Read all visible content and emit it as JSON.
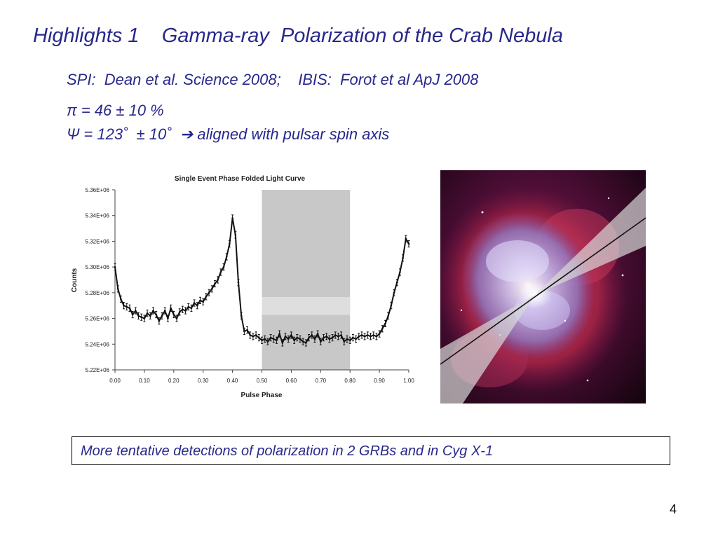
{
  "slide": {
    "title": "Highlights 1    Gamma-ray  Polarization of the Crab Nebula",
    "references": "SPI:  Dean et al. Science 2008;    IBIS:  Forot et al ApJ 2008",
    "pi_line": "π = 46 ± 10 %",
    "psi_line_prefix": "Ψ = 123˚  ± 10˚  ",
    "psi_arrow": "➔",
    "psi_line_suffix": " aligned with pulsar spin axis",
    "note": "More tentative detections of polarization in 2 GRBs and in Cyg X-1",
    "page_number": "4"
  },
  "chart_data": {
    "type": "line",
    "title": "Single Event Phase Folded Light Curve",
    "xlabel": "Pulse Phase",
    "ylabel": "Counts",
    "xlim": [
      0,
      1
    ],
    "ylim": [
      5220000,
      5360000
    ],
    "x_ticks": [
      "0.00",
      "0.10",
      "0.20",
      "0.30",
      "0.40",
      "0.50",
      "0.60",
      "0.70",
      "0.80",
      "0.90",
      "1.00"
    ],
    "y_ticks": [
      "5.22E+06",
      "5.24E+06",
      "5.26E+06",
      "5.28E+06",
      "5.30E+06",
      "5.32E+06",
      "5.34E+06",
      "5.36E+06"
    ],
    "shaded_region": [
      0.5,
      0.8
    ],
    "grid": false,
    "error_bars": true,
    "series": [
      {
        "x": [
          0.0,
          0.01,
          0.02,
          0.03,
          0.04,
          0.05,
          0.06,
          0.07,
          0.08,
          0.09,
          0.1,
          0.11,
          0.12,
          0.13,
          0.14,
          0.15,
          0.16,
          0.17,
          0.18,
          0.19,
          0.2,
          0.21,
          0.22,
          0.23,
          0.24,
          0.25,
          0.26,
          0.27,
          0.28,
          0.29,
          0.3,
          0.31,
          0.32,
          0.33,
          0.34,
          0.35,
          0.36,
          0.37,
          0.38,
          0.39,
          0.4,
          0.41,
          0.42,
          0.43,
          0.44,
          0.45,
          0.46,
          0.47,
          0.48,
          0.49,
          0.5,
          0.51,
          0.52,
          0.53,
          0.54,
          0.55,
          0.56,
          0.57,
          0.58,
          0.59,
          0.6,
          0.61,
          0.62,
          0.63,
          0.64,
          0.65,
          0.66,
          0.67,
          0.68,
          0.69,
          0.7,
          0.71,
          0.72,
          0.73,
          0.74,
          0.75,
          0.76,
          0.77,
          0.78,
          0.79,
          0.8,
          0.81,
          0.82,
          0.83,
          0.84,
          0.85,
          0.86,
          0.87,
          0.88,
          0.89,
          0.9,
          0.91,
          0.92,
          0.93,
          0.94,
          0.95,
          0.96,
          0.97,
          0.98,
          0.99,
          1.0
        ],
        "y": [
          5300000,
          5283000,
          5275000,
          5270000,
          5269000,
          5268000,
          5263000,
          5266000,
          5262000,
          5261000,
          5260000,
          5264000,
          5262000,
          5266000,
          5263000,
          5258000,
          5262000,
          5266000,
          5260000,
          5268000,
          5263000,
          5260000,
          5265000,
          5267000,
          5266000,
          5269000,
          5268000,
          5272000,
          5270000,
          5274000,
          5273000,
          5277000,
          5280000,
          5283000,
          5287000,
          5290000,
          5296000,
          5300000,
          5308000,
          5318000,
          5338000,
          5325000,
          5288000,
          5262000,
          5250000,
          5251000,
          5247000,
          5246000,
          5247000,
          5245000,
          5243000,
          5244000,
          5242000,
          5245000,
          5244000,
          5243000,
          5248000,
          5241000,
          5246000,
          5244000,
          5247000,
          5243000,
          5245000,
          5244000,
          5242000,
          5241000,
          5245000,
          5247000,
          5244000,
          5248000,
          5242000,
          5245000,
          5246000,
          5244000,
          5245000,
          5247000,
          5246000,
          5247000,
          5242000,
          5244000,
          5243000,
          5245000,
          5244000,
          5246000,
          5247000,
          5246000,
          5247000,
          5246000,
          5247000,
          5246000,
          5248000,
          5252000,
          5256000,
          5262000,
          5270000,
          5280000,
          5288000,
          5296000,
          5307000,
          5322000,
          5318000
        ]
      }
    ]
  }
}
